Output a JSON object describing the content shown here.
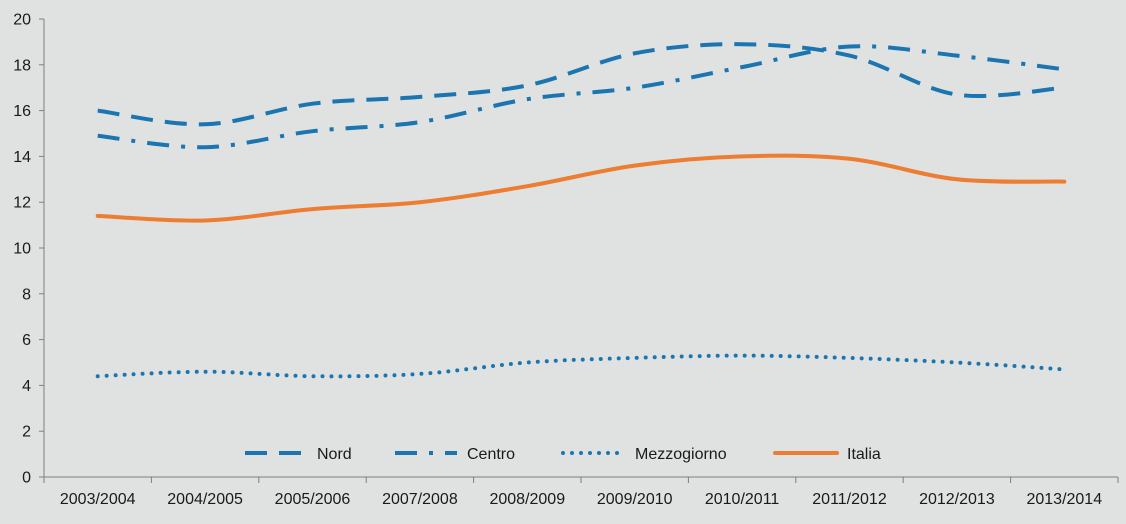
{
  "chart_data": {
    "type": "line",
    "categories": [
      "2003/2004",
      "2004/2005",
      "2005/2006",
      "2007/2008",
      "2008/2009",
      "2009/2010",
      "2010/2011",
      "2011/2012",
      "2012/2013",
      "2013/2014"
    ],
    "series": [
      {
        "name": "Nord",
        "values": [
          16.0,
          15.4,
          16.3,
          16.6,
          17.1,
          18.5,
          18.9,
          18.4,
          16.7,
          17.0
        ],
        "color": "#1a75b0",
        "style": "dashed"
      },
      {
        "name": "Centro",
        "values": [
          14.9,
          14.4,
          15.1,
          15.5,
          16.5,
          17.0,
          17.9,
          18.8,
          18.4,
          17.8
        ],
        "color": "#1a75b0",
        "style": "dash-dot"
      },
      {
        "name": "Mezzogiorno",
        "values": [
          4.4,
          4.6,
          4.4,
          4.5,
          5.0,
          5.2,
          5.3,
          5.2,
          5.0,
          4.7
        ],
        "color": "#1a75b0",
        "style": "dotted"
      },
      {
        "name": "Italia",
        "values": [
          11.4,
          11.2,
          11.7,
          12.0,
          12.7,
          13.6,
          14.0,
          13.9,
          13.0,
          12.9
        ],
        "color": "#ed7d31",
        "style": "solid"
      }
    ],
    "ylim": [
      0,
      20
    ],
    "yticks": [
      0,
      2,
      4,
      6,
      8,
      10,
      12,
      14,
      16,
      18,
      20
    ],
    "grid": false,
    "legend_position": "bottom-inside",
    "background": "#e0e1e1"
  }
}
